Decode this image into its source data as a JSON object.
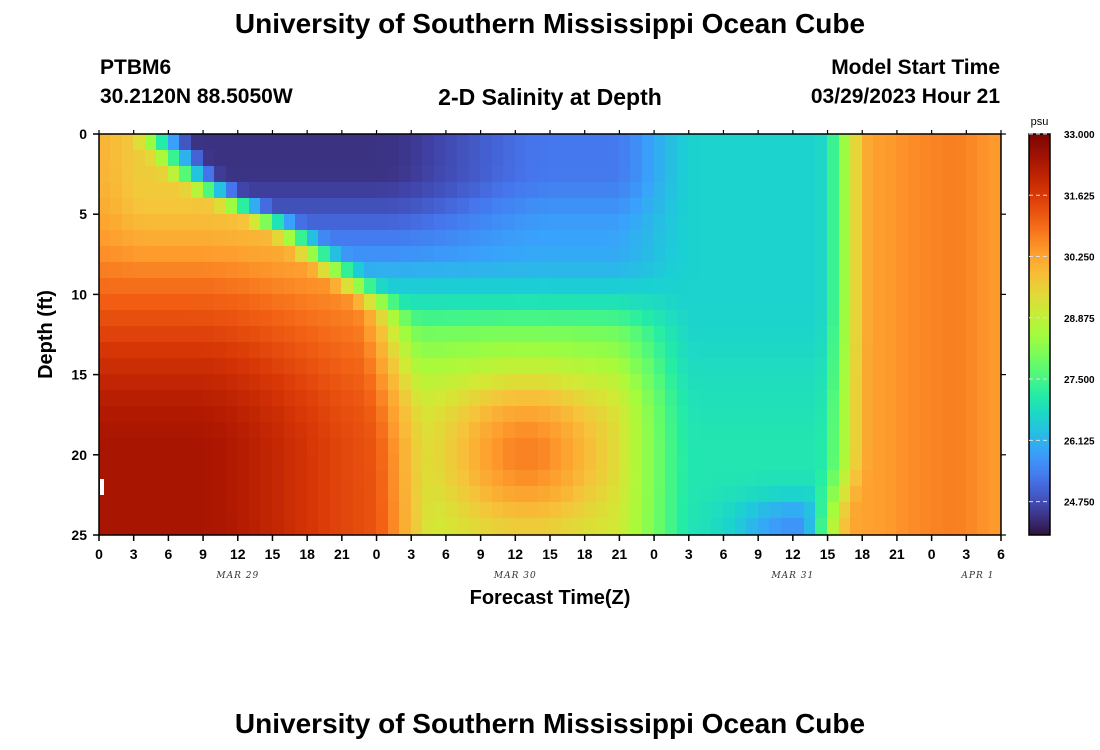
{
  "header": {
    "title": "University of Southern Mississippi Ocean Cube",
    "station": "PTBM6",
    "coordinates": "30.2120N  88.5050W",
    "subtitle": "2-D Salinity at Depth",
    "model_start_label": "Model Start Time",
    "model_start_value": "03/29/2023 Hour 21",
    "footer_title": "University of Southern Mississippi Ocean Cube"
  },
  "chart_data": {
    "type": "heatmap",
    "title": "2-D Salinity at Depth",
    "xlabel": "Forecast Time(Z)",
    "ylabel": "Depth (ft)",
    "x_range_hours_from_mar29_00z": [
      0,
      78
    ],
    "x_ticks": [
      "0",
      "3",
      "6",
      "9",
      "12",
      "15",
      "18",
      "21",
      "0",
      "3",
      "6",
      "9",
      "12",
      "15",
      "18",
      "21",
      "0",
      "3",
      "6",
      "9",
      "12",
      "15",
      "18",
      "21",
      "0",
      "3",
      "6"
    ],
    "day_labels": [
      {
        "label": "MAR 29",
        "center_hour": 12
      },
      {
        "label": "MAR 30",
        "center_hour": 36
      },
      {
        "label": "MAR 31",
        "center_hour": 60
      },
      {
        "label": "APR 1",
        "center_hour": 76
      }
    ],
    "y_ticks": [
      0,
      5,
      10,
      15,
      20,
      25
    ],
    "ylim": [
      0,
      25
    ],
    "y_inverted": true,
    "colorbar": {
      "unit": "psu",
      "min": 24.0,
      "max": 33.0,
      "tick_values": [
        33.0,
        31.625,
        30.25,
        28.875,
        27.5,
        26.125,
        24.75
      ],
      "tick_labels": [
        "33.000",
        "31.625",
        "30.250",
        "28.875",
        "27.500",
        "26.125",
        "24.750"
      ],
      "colormap": "turbo"
    },
    "description": "Salinity field: high (~31-32.5 psu) at depth early Mar 29, low (~24-26 psu) near surface Mar 29 midday through Mar 30, mid-depth salty core (~30.5 psu) near 20 ft around Mar 30 12Z, low (~26.5 psu) full water column Mar 31 00-12Z, rising to ~30.5 psu by Mar 31 21Z onward."
  }
}
